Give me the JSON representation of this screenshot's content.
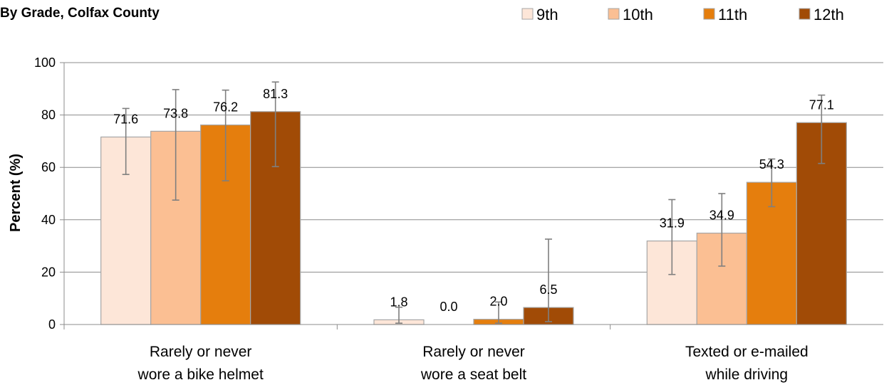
{
  "chart_data": {
    "type": "bar",
    "title": "By Grade, Colfax County",
    "ylabel": "Percent (%)",
    "xlabel": "",
    "ylim": [
      0,
      100
    ],
    "yticks": [
      0,
      20,
      40,
      60,
      80,
      100
    ],
    "grid": true,
    "legend_position": "top-right",
    "categories": [
      [
        "Rarely or never",
        "wore a bike helmet"
      ],
      [
        "Rarely or never",
        "wore a seat belt"
      ],
      [
        "Texted or e-mailed",
        "while driving"
      ]
    ],
    "series": [
      {
        "name": "9th",
        "color": "#fde6d8",
        "values": [
          71.6,
          1.8,
          31.9
        ],
        "error_low": [
          57.3,
          0.5,
          19.1
        ],
        "error_high": [
          82.5,
          6.6,
          47.7
        ]
      },
      {
        "name": "10th",
        "color": "#fbbf93",
        "values": [
          73.8,
          0.0,
          34.9
        ],
        "error_low": [
          47.5,
          null,
          22.3
        ],
        "error_high": [
          89.7,
          null,
          50.0
        ]
      },
      {
        "name": "11th",
        "color": "#e57e0d",
        "values": [
          76.2,
          2.0,
          54.3
        ],
        "error_low": [
          54.9,
          0.5,
          45.0
        ],
        "error_high": [
          89.5,
          8.6,
          63.2
        ]
      },
      {
        "name": "12th",
        "color": "#a14b06",
        "values": [
          81.3,
          6.5,
          77.1
        ],
        "error_low": [
          60.3,
          1.1,
          61.5
        ],
        "error_high": [
          92.6,
          32.6,
          87.6
        ]
      }
    ]
  }
}
